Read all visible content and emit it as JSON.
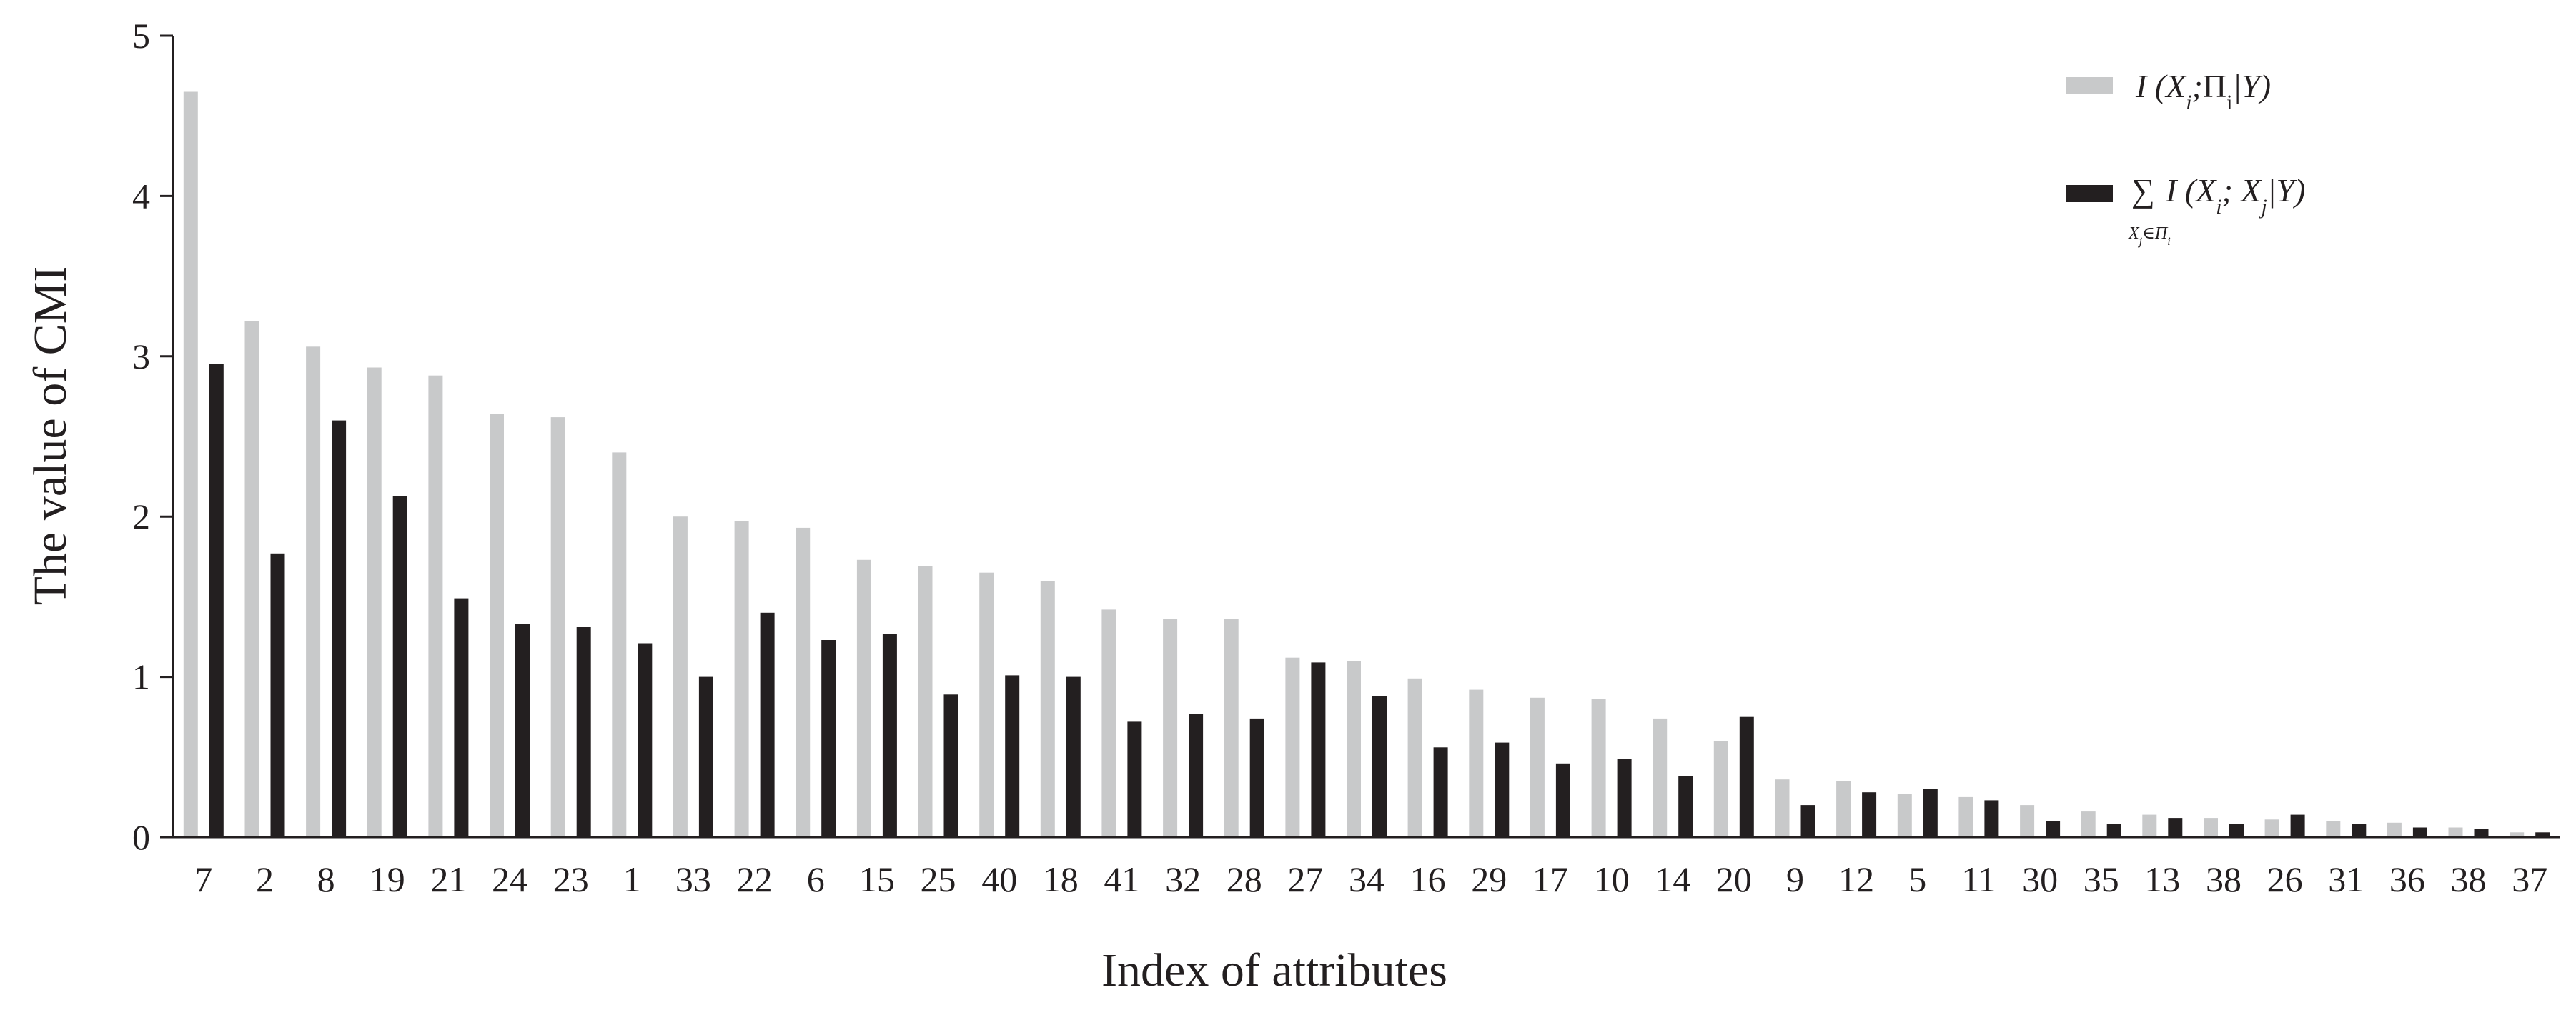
{
  "chart_data": {
    "type": "bar",
    "xlabel": "Index of attributes",
    "ylabel": "The value of CMI",
    "ylim": [
      0,
      5
    ],
    "yticks": [
      "0",
      "1",
      "2",
      "3",
      "4",
      "5"
    ],
    "grid": false,
    "legend_position": "top-right",
    "categories": [
      "7",
      "2",
      "8",
      "19",
      "21",
      "24",
      "23",
      "1",
      "33",
      "22",
      "6",
      "15",
      "25",
      "40",
      "18",
      "41",
      "32",
      "28",
      "27",
      "34",
      "16",
      "29",
      "17",
      "10",
      "14",
      "20",
      "9",
      "12",
      "5",
      "11",
      "30",
      "35",
      "13",
      "38",
      "26",
      "31",
      "36",
      "38",
      "37"
    ],
    "series": [
      {
        "name": "I (Xi;Πi|Y)",
        "color": "#c8c9ca",
        "values": [
          4.65,
          3.22,
          3.06,
          2.93,
          2.88,
          2.64,
          2.62,
          2.4,
          2.0,
          1.97,
          1.93,
          1.73,
          1.69,
          1.65,
          1.6,
          1.42,
          1.36,
          1.36,
          1.12,
          1.1,
          0.99,
          0.92,
          0.87,
          0.86,
          0.74,
          0.6,
          0.36,
          0.35,
          0.27,
          0.25,
          0.2,
          0.16,
          0.14,
          0.12,
          0.11,
          0.1,
          0.09,
          0.06,
          0.03
        ]
      },
      {
        "name": "∑ I (Xi; Xj|Y), Xj∈Πi",
        "color": "#231f20",
        "values": [
          2.95,
          1.77,
          2.6,
          2.13,
          1.49,
          1.33,
          1.31,
          1.21,
          1.0,
          1.4,
          1.23,
          1.27,
          0.89,
          1.01,
          1.0,
          0.72,
          0.77,
          0.74,
          1.09,
          0.88,
          0.56,
          0.59,
          0.46,
          0.49,
          0.38,
          0.75,
          0.2,
          0.28,
          0.3,
          0.23,
          0.1,
          0.08,
          0.12,
          0.08,
          0.14,
          0.08,
          0.06,
          0.05,
          0.03
        ]
      }
    ]
  }
}
